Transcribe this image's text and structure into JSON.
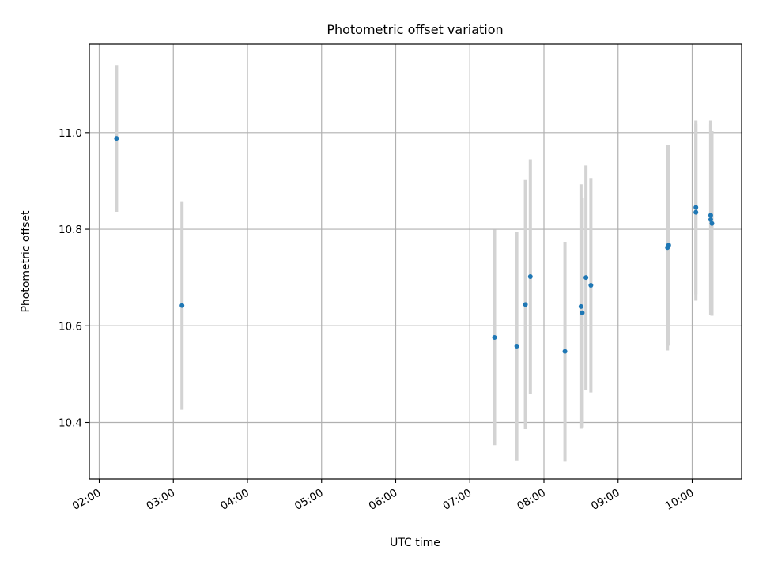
{
  "chart_data": {
    "type": "scatter",
    "title": "Photometric offset variation",
    "xlabel": "UTC time",
    "ylabel": "Photometric offset",
    "x_unit": "UTC time (HH:MM)",
    "xlim": [
      "01:52",
      "10:40"
    ],
    "ylim": [
      10.283,
      11.183
    ],
    "x_ticks": [
      "02:00",
      "03:00",
      "04:00",
      "05:00",
      "06:00",
      "07:00",
      "08:00",
      "09:00",
      "10:00"
    ],
    "y_ticks": [
      10.4,
      10.6,
      10.8,
      11.0
    ],
    "y_tick_labels": [
      "10.4",
      "10.6",
      "10.8",
      "11.0"
    ],
    "grid": true,
    "legend": "none",
    "colors": {
      "point": "#1f77b4",
      "errorbar": "#d3d3d3",
      "grid": "#b0b0b0"
    },
    "points": [
      {
        "x": "02:14",
        "y": 10.988,
        "err": 0.152
      },
      {
        "x": "03:07",
        "y": 10.642,
        "err": 0.216
      },
      {
        "x": "07:20",
        "y": 10.576,
        "err": 0.223
      },
      {
        "x": "07:38",
        "y": 10.558,
        "err": 0.237
      },
      {
        "x": "07:45",
        "y": 10.644,
        "err": 0.258
      },
      {
        "x": "07:49",
        "y": 10.702,
        "err": 0.243
      },
      {
        "x": "08:17",
        "y": 10.547,
        "err": 0.227
      },
      {
        "x": "08:30",
        "y": 10.64,
        "err": 0.253
      },
      {
        "x": "08:31",
        "y": 10.627,
        "err": 0.237
      },
      {
        "x": "08:34",
        "y": 10.7,
        "err": 0.232
      },
      {
        "x": "08:38",
        "y": 10.684,
        "err": 0.222
      },
      {
        "x": "09:40",
        "y": 10.762,
        "err": 0.213
      },
      {
        "x": "09:41",
        "y": 10.767,
        "err": 0.208
      },
      {
        "x": "10:03",
        "y": 10.845,
        "err": 0.18
      },
      {
        "x": "10:03",
        "y": 10.835,
        "err": 0.183
      },
      {
        "x": "10:15",
        "y": 10.829,
        "err": 0.196
      },
      {
        "x": "10:15",
        "y": 10.82,
        "err": 0.198
      },
      {
        "x": "10:16",
        "y": 10.812,
        "err": 0.191
      }
    ]
  }
}
